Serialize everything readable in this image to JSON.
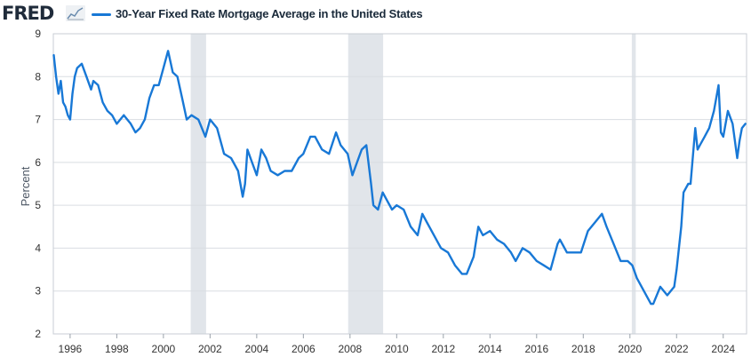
{
  "header": {
    "logo_text": "FRED",
    "legend_label": "30-Year Fixed Rate Mortgage Average in the United States",
    "legend_color": "#1878d6"
  },
  "chart_data": {
    "type": "line",
    "title": "",
    "xlabel": "",
    "ylabel": "Percent",
    "xlim": [
      1995.28,
      2025.0
    ],
    "ylim": [
      2,
      9
    ],
    "yticks": [
      2,
      3,
      4,
      5,
      6,
      7,
      8,
      9
    ],
    "xticks": [
      1996,
      1998,
      2000,
      2002,
      2004,
      2006,
      2008,
      2010,
      2012,
      2014,
      2016,
      2018,
      2020,
      2022,
      2024
    ],
    "grid": "horizontal",
    "recessions": [
      [
        2001.17,
        2001.83
      ],
      [
        2007.92,
        2009.42
      ],
      [
        2020.08,
        2020.25
      ]
    ],
    "recession_color": "#e1e5ea",
    "series": [
      {
        "name": "30-Year Fixed Rate Mortgage Average in the United States",
        "color": "#1878d6",
        "x": [
          1995.3,
          1995.4,
          1995.5,
          1995.6,
          1995.7,
          1995.8,
          1995.9,
          1996.0,
          1996.1,
          1996.2,
          1996.3,
          1996.5,
          1996.7,
          1996.9,
          1997.0,
          1997.2,
          1997.4,
          1997.6,
          1997.8,
          1998.0,
          1998.3,
          1998.6,
          1998.8,
          1999.0,
          1999.2,
          1999.4,
          1999.6,
          1999.8,
          2000.0,
          2000.2,
          2000.4,
          2000.6,
          2000.8,
          2001.0,
          2001.2,
          2001.5,
          2001.8,
          2002.0,
          2002.3,
          2002.6,
          2002.9,
          2003.2,
          2003.4,
          2003.5,
          2003.6,
          2003.8,
          2004.0,
          2004.2,
          2004.4,
          2004.6,
          2004.9,
          2005.2,
          2005.5,
          2005.8,
          2006.0,
          2006.3,
          2006.5,
          2006.8,
          2007.1,
          2007.4,
          2007.6,
          2007.9,
          2008.1,
          2008.3,
          2008.5,
          2008.7,
          2008.9,
          2009.0,
          2009.2,
          2009.4,
          2009.6,
          2009.8,
          2010.0,
          2010.3,
          2010.6,
          2010.9,
          2011.1,
          2011.3,
          2011.6,
          2011.9,
          2012.2,
          2012.5,
          2012.8,
          2013.0,
          2013.3,
          2013.5,
          2013.7,
          2014.0,
          2014.3,
          2014.6,
          2014.9,
          2015.1,
          2015.4,
          2015.7,
          2016.0,
          2016.3,
          2016.6,
          2016.9,
          2017.0,
          2017.3,
          2017.6,
          2017.9,
          2018.2,
          2018.5,
          2018.8,
          2019.0,
          2019.3,
          2019.6,
          2019.9,
          2020.1,
          2020.3,
          2020.6,
          2020.9,
          2021.0,
          2021.3,
          2021.6,
          2021.9,
          2022.0,
          2022.2,
          2022.3,
          2022.5,
          2022.6,
          2022.8,
          2022.9,
          2023.0,
          2023.2,
          2023.4,
          2023.6,
          2023.8,
          2023.9,
          2024.0,
          2024.2,
          2024.4,
          2024.6,
          2024.7,
          2024.8,
          2024.95
        ],
        "values": [
          8.5,
          8.0,
          7.6,
          7.9,
          7.4,
          7.3,
          7.1,
          7.0,
          7.6,
          8.0,
          8.2,
          8.3,
          8.0,
          7.7,
          7.9,
          7.8,
          7.4,
          7.2,
          7.1,
          6.9,
          7.1,
          6.9,
          6.7,
          6.8,
          7.0,
          7.5,
          7.8,
          7.8,
          8.2,
          8.6,
          8.1,
          8.0,
          7.5,
          7.0,
          7.1,
          7.0,
          6.6,
          7.0,
          6.8,
          6.2,
          6.1,
          5.8,
          5.2,
          5.5,
          6.3,
          6.0,
          5.7,
          6.3,
          6.1,
          5.8,
          5.7,
          5.8,
          5.8,
          6.1,
          6.2,
          6.6,
          6.6,
          6.3,
          6.2,
          6.7,
          6.4,
          6.2,
          5.7,
          6.0,
          6.3,
          6.4,
          5.5,
          5.0,
          4.9,
          5.3,
          5.1,
          4.9,
          5.0,
          4.9,
          4.5,
          4.3,
          4.8,
          4.6,
          4.3,
          4.0,
          3.9,
          3.6,
          3.4,
          3.4,
          3.8,
          4.5,
          4.3,
          4.4,
          4.2,
          4.1,
          3.9,
          3.7,
          4.0,
          3.9,
          3.7,
          3.6,
          3.5,
          4.1,
          4.2,
          3.9,
          3.9,
          3.9,
          4.4,
          4.6,
          4.8,
          4.5,
          4.1,
          3.7,
          3.7,
          3.6,
          3.3,
          3.0,
          2.7,
          2.7,
          3.1,
          2.9,
          3.1,
          3.5,
          4.5,
          5.3,
          5.5,
          5.5,
          6.8,
          6.3,
          6.4,
          6.6,
          6.8,
          7.2,
          7.8,
          6.7,
          6.6,
          7.2,
          6.9,
          6.1,
          6.5,
          6.8,
          6.9
        ]
      }
    ]
  }
}
